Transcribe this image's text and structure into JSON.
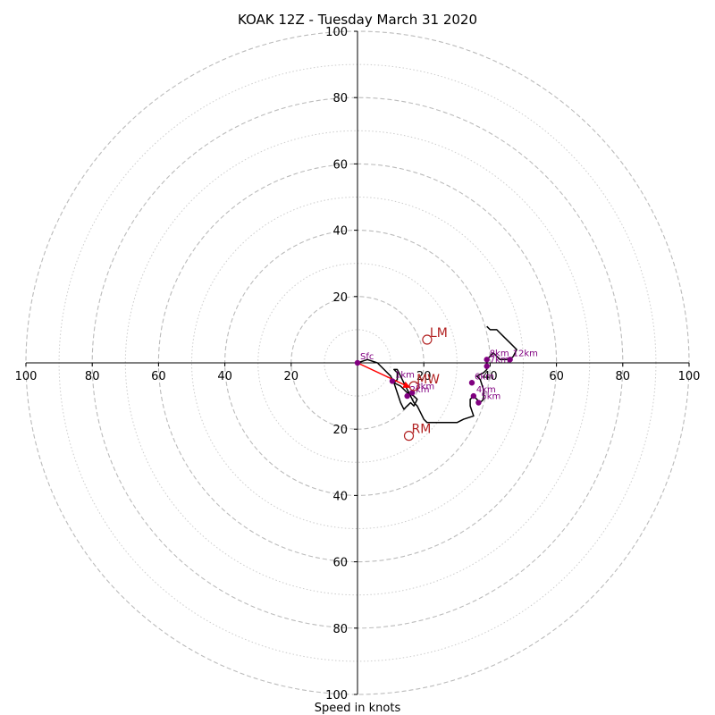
{
  "chart_data": {
    "type": "hodograph",
    "title": "KOAK 12Z - Tuesday March 31 2020",
    "xlabel": "Speed in knots",
    "xlim": [
      -100,
      100
    ],
    "ylim": [
      -100,
      100
    ],
    "tick_labels": [
      "20",
      "40",
      "60",
      "80",
      "100"
    ],
    "ring_major": [
      20,
      40,
      60,
      80,
      100
    ],
    "ring_minor": [
      10,
      30,
      50,
      70,
      90
    ],
    "colors": {
      "profile": "#000000",
      "markers": "#800080",
      "storm_motion": "#b22222",
      "shear_vector": "#ff0000",
      "rings": "#bbbbbb",
      "axes": "#000000"
    },
    "profile": [
      [
        0,
        0
      ],
      [
        3,
        1
      ],
      [
        6,
        0
      ],
      [
        8,
        -2
      ],
      [
        10,
        -4
      ],
      [
        11,
        -6
      ],
      [
        13,
        -7
      ],
      [
        15,
        -9
      ],
      [
        17,
        -10
      ],
      [
        18,
        -11
      ],
      [
        17,
        -13
      ],
      [
        16,
        -12
      ],
      [
        15,
        -13
      ],
      [
        14,
        -14
      ],
      [
        13,
        -12
      ],
      [
        12,
        -9
      ],
      [
        11,
        -6
      ],
      [
        12,
        -5
      ],
      [
        12,
        -3
      ],
      [
        11,
        -2
      ],
      [
        12,
        -2
      ],
      [
        13,
        -4
      ],
      [
        14,
        -6
      ],
      [
        15,
        -8
      ],
      [
        16,
        -10
      ],
      [
        17,
        -12
      ],
      [
        18,
        -13
      ],
      [
        19,
        -15
      ],
      [
        20,
        -17
      ],
      [
        21,
        -18
      ],
      [
        25,
        -18
      ],
      [
        30,
        -18
      ],
      [
        32,
        -17
      ],
      [
        35,
        -16
      ],
      [
        34,
        -13
      ],
      [
        34,
        -11
      ],
      [
        35,
        -10
      ],
      [
        36,
        -11
      ],
      [
        37,
        -12
      ],
      [
        38,
        -11
      ],
      [
        38,
        -8
      ],
      [
        37,
        -5
      ],
      [
        36,
        -4
      ],
      [
        38,
        -3
      ],
      [
        39,
        -2
      ],
      [
        39,
        -1
      ],
      [
        39,
        0
      ],
      [
        39,
        1
      ],
      [
        40,
        2
      ],
      [
        41,
        3
      ],
      [
        42,
        2
      ],
      [
        43,
        1
      ],
      [
        45,
        1
      ],
      [
        46,
        1
      ],
      [
        47,
        2
      ],
      [
        48,
        4
      ],
      [
        47,
        5
      ],
      [
        46,
        6
      ],
      [
        44,
        8
      ],
      [
        43,
        9
      ],
      [
        42,
        10
      ],
      [
        40,
        10
      ],
      [
        39,
        11
      ]
    ],
    "height_markers": [
      {
        "label": "Sfc",
        "u": 0,
        "v": 0
      },
      {
        "label": "1km",
        "u": 10.5,
        "v": -5.5
      },
      {
        "label": "2km",
        "u": 15,
        "v": -10
      },
      {
        "label": "3km",
        "u": 16.5,
        "v": -9
      },
      {
        "label": "4km",
        "u": 35,
        "v": -10
      },
      {
        "label": "5km",
        "u": 36.5,
        "v": -12
      },
      {
        "label": "6km",
        "u": 34.5,
        "v": -6
      },
      {
        "label": "7km",
        "u": 39,
        "v": -1
      },
      {
        "label": "8km",
        "u": 39,
        "v": 1
      },
      {
        "label": "12km",
        "u": 46,
        "v": 1
      }
    ],
    "storm_motion": [
      {
        "label": "LM",
        "u": 21,
        "v": 7
      },
      {
        "label": "MW",
        "u": 17,
        "v": -7
      },
      {
        "label": "RM",
        "u": 15.5,
        "v": -22
      }
    ],
    "shear_vector": {
      "from": [
        0,
        0
      ],
      "to": [
        16,
        -7.5
      ]
    }
  }
}
